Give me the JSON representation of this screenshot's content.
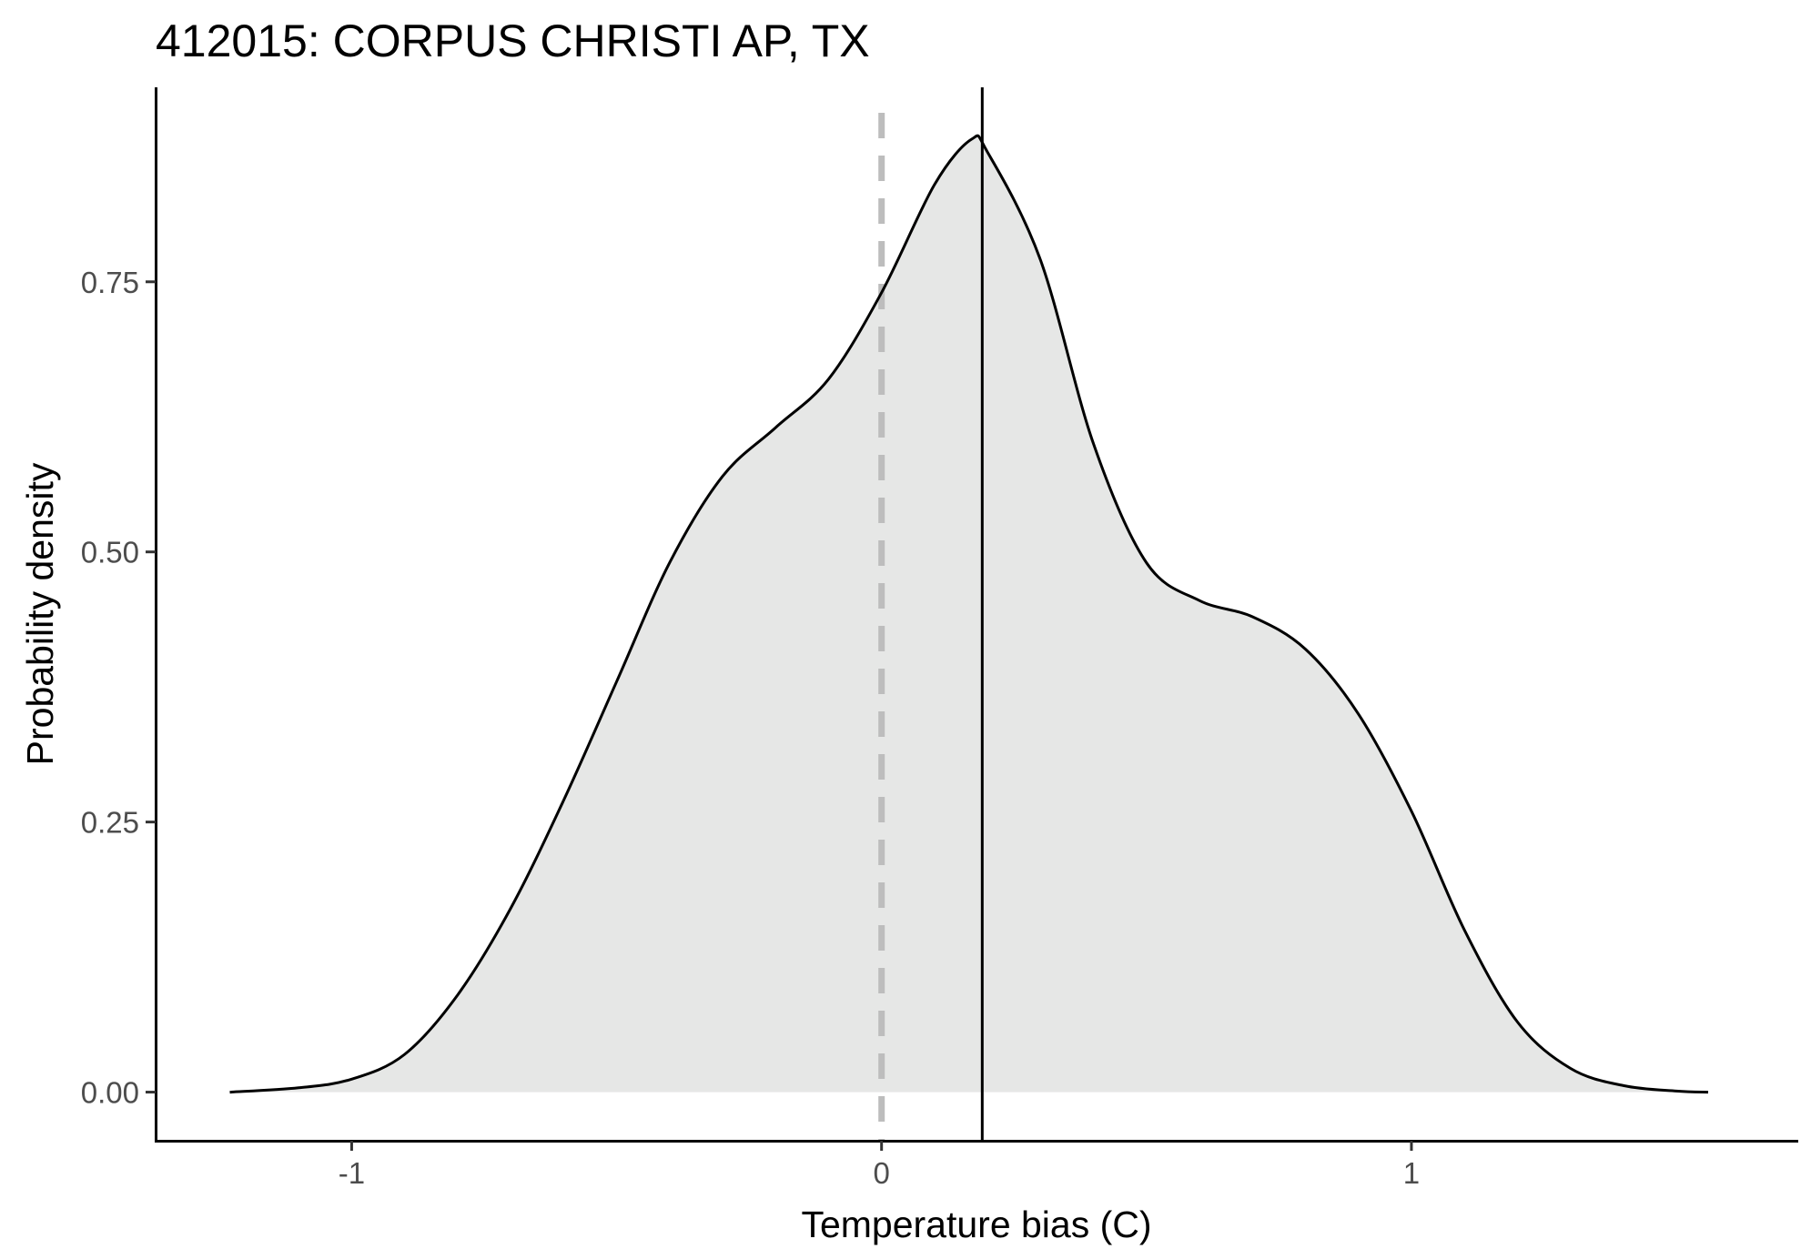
{
  "chart_data": {
    "type": "area",
    "title": "412015: CORPUS CHRISTI AP, TX",
    "xlabel": "Temperature bias (C)",
    "ylabel": "Probability density",
    "xlim": [
      -1.37,
      1.73
    ],
    "ylim": [
      -0.045,
      0.93
    ],
    "x_ticks": [
      -1,
      0,
      1
    ],
    "x_tick_labels": [
      "-1",
      "0",
      "1"
    ],
    "y_ticks": [
      0,
      0.25,
      0.5,
      0.75
    ],
    "y_tick_labels": [
      "0.00",
      "0.25",
      "0.50",
      "0.75"
    ],
    "grid": false,
    "legend": "none",
    "fill_color": "#e6e7e6",
    "line_color": "#000000",
    "reference_lines": [
      {
        "x": 0,
        "style": "dashed",
        "color": "#bdbdbd"
      },
      {
        "x": 0.19,
        "style": "solid",
        "color": "#000000"
      }
    ],
    "series": [
      {
        "x": [
          -1.23,
          -1.1,
          -1.0,
          -0.9,
          -0.8,
          -0.7,
          -0.6,
          -0.5,
          -0.4,
          -0.3,
          -0.2,
          -0.1,
          0.0,
          0.1,
          0.17,
          0.2,
          0.3,
          0.4,
          0.5,
          0.6,
          0.7,
          0.8,
          0.9,
          1.0,
          1.1,
          1.2,
          1.3,
          1.4,
          1.5,
          1.56
        ],
        "values": [
          0.0,
          0.004,
          0.012,
          0.035,
          0.09,
          0.17,
          0.27,
          0.38,
          0.49,
          0.57,
          0.615,
          0.66,
          0.74,
          0.84,
          0.882,
          0.87,
          0.77,
          0.6,
          0.49,
          0.455,
          0.44,
          0.41,
          0.35,
          0.26,
          0.15,
          0.065,
          0.022,
          0.006,
          0.001,
          0.0
        ]
      }
    ]
  }
}
